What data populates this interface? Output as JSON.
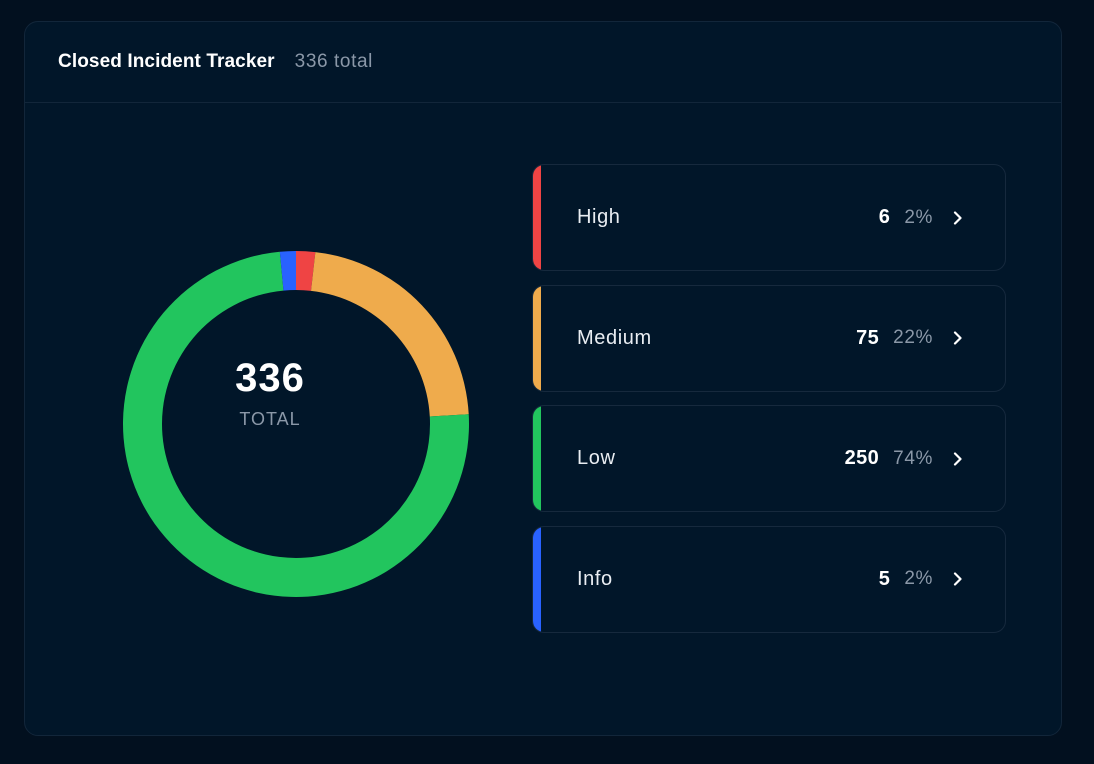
{
  "header": {
    "title": "Closed Incident Tracker",
    "subtitle": "336 total"
  },
  "center": {
    "total": "336",
    "label": "TOTAL"
  },
  "legend": [
    {
      "label": "High",
      "count": "6",
      "pct": "2%",
      "color": "#ef4444"
    },
    {
      "label": "Medium",
      "count": "75",
      "pct": "22%",
      "color": "#efab4c"
    },
    {
      "label": "Low",
      "count": "250",
      "pct": "74%",
      "color": "#22c55e"
    },
    {
      "label": "Info",
      "count": "5",
      "pct": "2%",
      "color": "#2962ff"
    }
  ],
  "chart_data": {
    "type": "pie",
    "title": "Closed Incident Tracker",
    "categories": [
      "High",
      "Medium",
      "Low",
      "Info"
    ],
    "values": [
      6,
      75,
      250,
      5
    ],
    "colors": [
      "#ef4444",
      "#efab4c",
      "#22c55e",
      "#2962ff"
    ],
    "total": 336,
    "donut": true
  }
}
